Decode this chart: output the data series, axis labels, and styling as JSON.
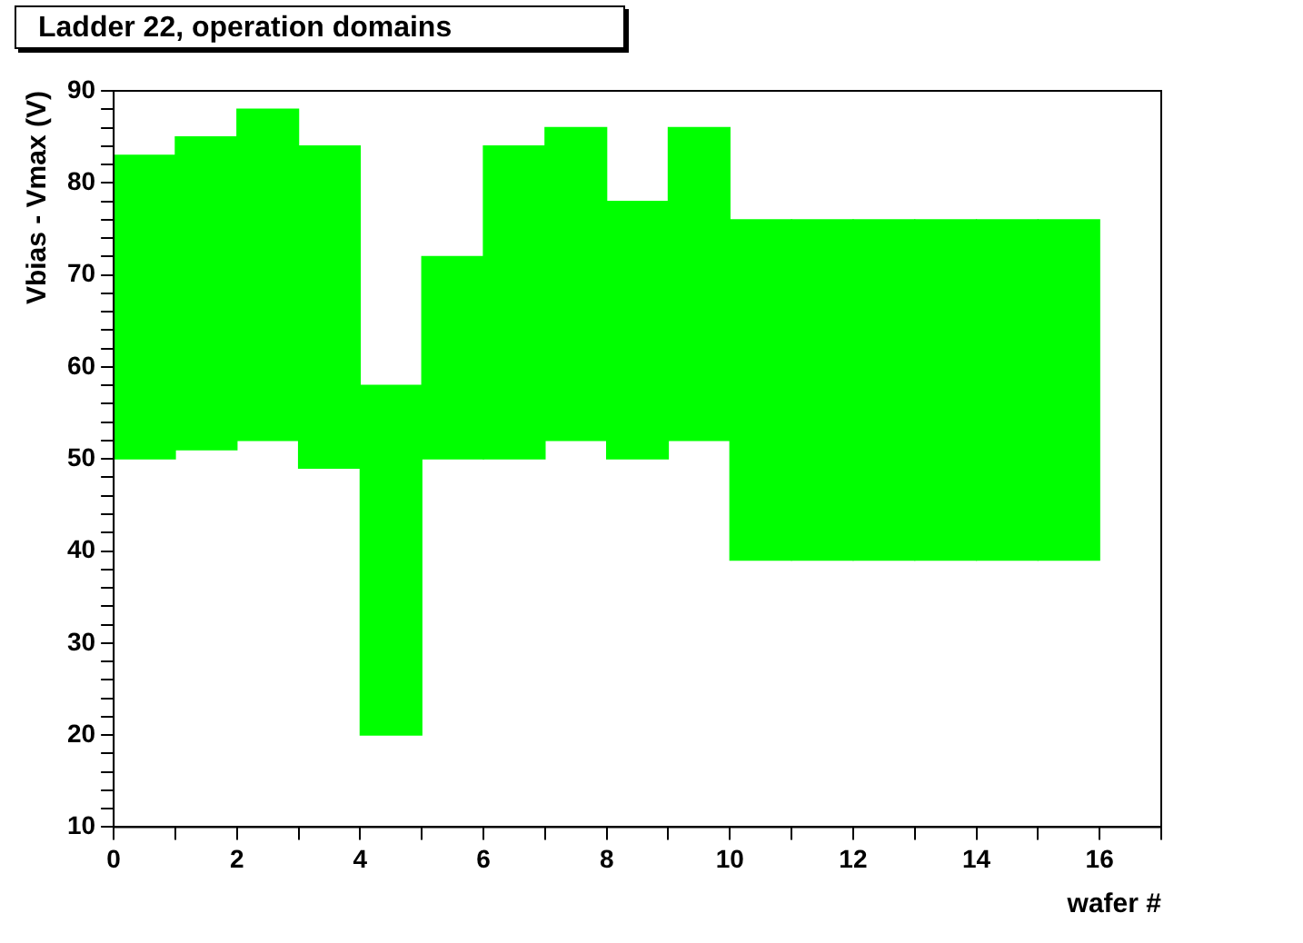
{
  "chart_data": {
    "type": "bar",
    "title": "Ladder 22, operation domains",
    "xlabel": "wafer #",
    "ylabel": "Vbias - Vmax (V)",
    "x": [
      0.5,
      1.5,
      2.5,
      3.5,
      4.5,
      5.5,
      6.5,
      7.5,
      8.5,
      9.5,
      10.5,
      11.5,
      12.5,
      13.5,
      14.5,
      15.5
    ],
    "base": [
      50,
      51,
      52,
      49,
      20,
      50,
      50,
      52,
      50,
      52,
      39,
      39,
      39,
      39,
      39,
      39
    ],
    "values": [
      33,
      34,
      36,
      35,
      38,
      22,
      34,
      34,
      28,
      34,
      37,
      37,
      37,
      37,
      37,
      37
    ],
    "color": "#00ff00",
    "xlim": [
      0,
      17
    ],
    "xticks": [
      0,
      {
        "value": 1,
        "label": null
      },
      2,
      {
        "value": 3,
        "label": null
      },
      4,
      {
        "value": 5,
        "label": null
      },
      6,
      {
        "value": 7,
        "label": null
      },
      8,
      {
        "value": 9,
        "label": null
      },
      10,
      {
        "value": 11,
        "label": null
      },
      12,
      {
        "value": 13,
        "label": null
      },
      14,
      {
        "value": 15,
        "label": null
      },
      16,
      {
        "value": 17,
        "label": null
      }
    ],
    "ylim": [
      10,
      90
    ],
    "yticks": [
      10,
      {
        "value": 12,
        "label": null
      },
      {
        "value": 14,
        "label": null
      },
      {
        "value": 16,
        "label": null
      },
      {
        "value": 18,
        "label": null
      },
      20,
      {
        "value": 22,
        "label": null
      },
      {
        "value": 24,
        "label": null
      },
      {
        "value": 26,
        "label": null
      },
      {
        "value": 28,
        "label": null
      },
      30,
      {
        "value": 32,
        "label": null
      },
      {
        "value": 34,
        "label": null
      },
      {
        "value": 36,
        "label": null
      },
      {
        "value": 38,
        "label": null
      },
      40,
      {
        "value": 42,
        "label": null
      },
      {
        "value": 44,
        "label": null
      },
      {
        "value": 46,
        "label": null
      },
      {
        "value": 48,
        "label": null
      },
      50,
      {
        "value": 52,
        "label": null
      },
      {
        "value": 54,
        "label": null
      },
      {
        "value": 56,
        "label": null
      },
      {
        "value": 58,
        "label": null
      },
      60,
      {
        "value": 62,
        "label": null
      },
      {
        "value": 64,
        "label": null
      },
      {
        "value": 66,
        "label": null
      },
      {
        "value": 68,
        "label": null
      },
      70,
      {
        "value": 72,
        "label": null
      },
      {
        "value": 74,
        "label": null
      },
      {
        "value": 76,
        "label": null
      },
      {
        "value": 78,
        "label": null
      },
      80,
      {
        "value": 82,
        "label": null
      },
      {
        "value": 84,
        "label": null
      },
      {
        "value": 86,
        "label": null
      },
      {
        "value": 88,
        "label": null
      },
      90
    ],
    "grid": false,
    "legend": false
  }
}
